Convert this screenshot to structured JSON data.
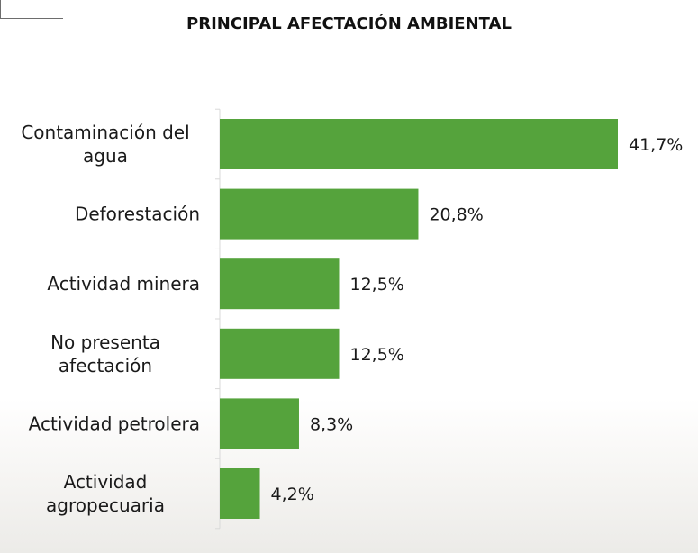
{
  "chart_data": {
    "type": "bar",
    "orientation": "horizontal",
    "title": "PRINCIPAL AFECTACIÓN AMBIENTAL",
    "categories": [
      [
        "Contaminación del",
        "agua"
      ],
      [
        "Deforestación"
      ],
      [
        "Actividad minera"
      ],
      [
        "No presenta",
        "afectación"
      ],
      [
        "Actividad petrolera"
      ],
      [
        "Actividad",
        "agropecuaria"
      ]
    ],
    "values": [
      41.7,
      20.8,
      12.5,
      12.5,
      8.3,
      4.2
    ],
    "value_labels": [
      "41,7%",
      "20,8%",
      "12,5%",
      "12,5%",
      "8,3%",
      "4,2%"
    ],
    "bar_color": "#55a33c",
    "xlim": [
      0,
      43
    ],
    "grid": false,
    "legend": "none"
  }
}
